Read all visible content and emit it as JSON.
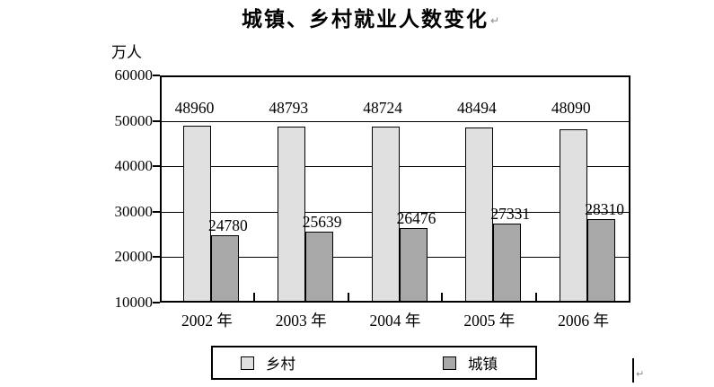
{
  "title": {
    "text": "城镇、乡村就业人数变化",
    "paragraph_mark": "↵"
  },
  "chart_data": {
    "type": "bar",
    "title": "城镇、乡村就业人数变化",
    "unit_label": "万人",
    "categories": [
      "2002 年",
      "2003 年",
      "2004 年",
      "2005 年",
      "2006 年"
    ],
    "series": [
      {
        "name": "乡村",
        "slug": "rural",
        "color": "#e0e0e0",
        "values": [
          48960,
          48793,
          48724,
          48494,
          48090
        ]
      },
      {
        "name": "城镇",
        "slug": "urban",
        "color": "#a8a8a8",
        "values": [
          24780,
          25639,
          26476,
          27331,
          28310
        ]
      }
    ],
    "ylim": [
      10000,
      60000
    ],
    "ytick_interval": 10000,
    "ytick_labels": [
      "60000",
      "50000",
      "40000",
      "30000",
      "20000",
      "10000"
    ],
    "grid": true,
    "data_labels": true,
    "legend_position": "bottom",
    "bar_border_color": "#000000",
    "axis_color": "#000000"
  },
  "cursor": {
    "paragraph_mark": "↵"
  }
}
